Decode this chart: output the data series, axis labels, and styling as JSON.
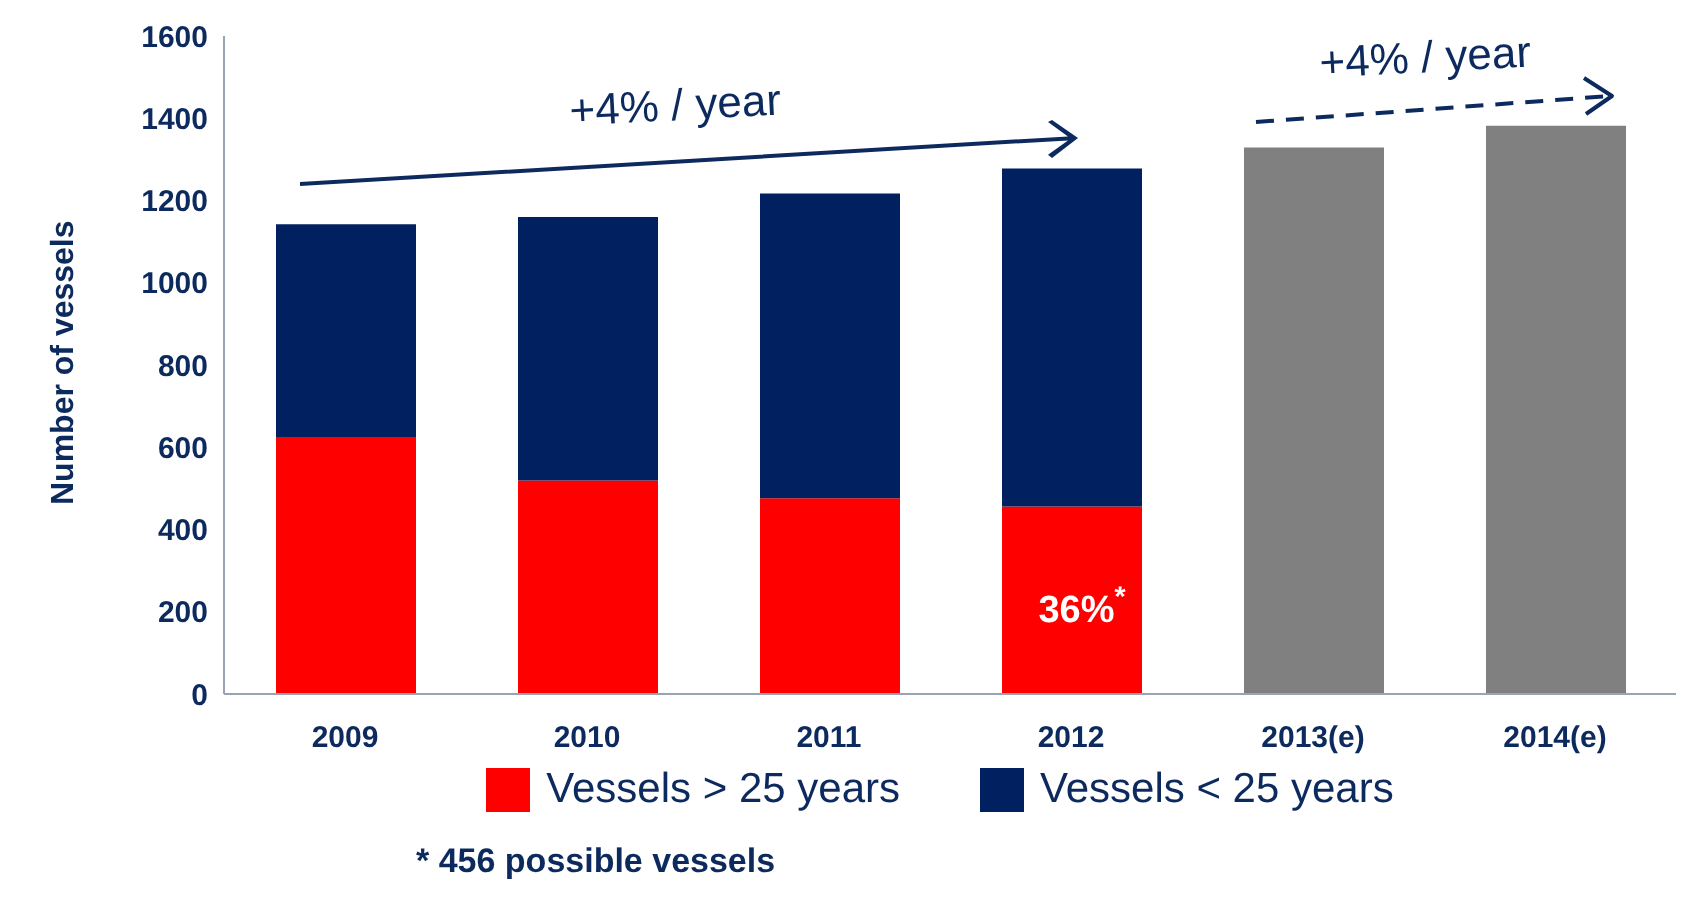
{
  "chart_data": {
    "type": "bar",
    "stacked": true,
    "ylabel": "Number of vessels",
    "categories": [
      "2009",
      "2010",
      "2011",
      "2012",
      "2013(e)",
      "2014(e)"
    ],
    "series": [
      {
        "name": "Vessels > 25 years",
        "color": "#ff0000",
        "values": [
          623,
          519,
          476,
          456,
          null,
          null
        ]
      },
      {
        "name": "Vessels < 25 years",
        "color": "#002060",
        "values": [
          519,
          641,
          741,
          822,
          null,
          null
        ]
      },
      {
        "color": "#808080",
        "values": [
          null,
          null,
          null,
          null,
          1329,
          1382
        ]
      }
    ],
    "ylim": [
      0,
      1600
    ],
    "yticks": [
      0,
      200,
      400,
      600,
      800,
      1000,
      1200,
      1400,
      1600
    ],
    "legend": "bottom",
    "annotations": [
      "+4% / year",
      "+4% / year",
      "36%$^{*}$",
      "* 456 possible vessels"
    ]
  }
}
